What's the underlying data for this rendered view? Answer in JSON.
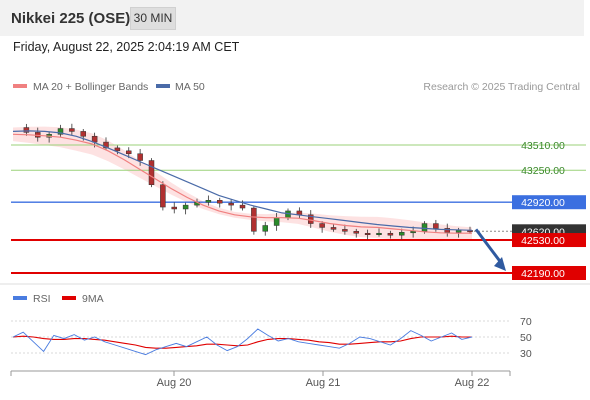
{
  "header": {
    "title": "Nikkei 225 (OSE)",
    "interval": "30 MIN",
    "datetime": "Friday, August 22, 2025 2:04:19 AM CET"
  },
  "legend": {
    "ma20_label": "MA 20 + Bollinger Bands",
    "ma50_label": "MA 50",
    "copyright": "Research © 2025 Trading Central",
    "rsi_label": "RSI",
    "rsi_ma_label": "9MA"
  },
  "colors": {
    "ma20": "#f08080",
    "ma50": "#4a6ba8",
    "bollinger_fill": "#fcd6d6",
    "green_level": "#9bd27a",
    "blue_level": "#3b6fe0",
    "red_level": "#e00000",
    "last_price_tag": "#333333",
    "rsi": "#4a7ce0",
    "rsi_ma": "#e00000",
    "arrow": "#2f5aa0",
    "candle_up": "#2a8a2a",
    "candle_down": "#b03030"
  },
  "chart_data": [
    {
      "type": "candlestick",
      "title": "Nikkei 225 (OSE)",
      "x_tick_labels": [
        "Aug 20",
        "Aug 21",
        "Aug 22"
      ],
      "ylim": [
        42100,
        43750
      ],
      "levels": [
        {
          "label": "43510.00",
          "value": 43510,
          "kind": "resistance"
        },
        {
          "label": "43250.00",
          "value": 43250,
          "kind": "resistance"
        },
        {
          "label": "42920.00",
          "value": 42920,
          "kind": "pivot"
        },
        {
          "label": "42620.00",
          "value": 42620,
          "kind": "last_price"
        },
        {
          "label": "42530.00",
          "value": 42530,
          "kind": "support"
        },
        {
          "label": "42190.00",
          "value": 42190,
          "kind": "target"
        }
      ],
      "series": [
        {
          "name": "MA 20",
          "values": [
            43620,
            43615,
            43605,
            43590,
            43560,
            43520,
            43450,
            43360,
            43260,
            43160,
            43060,
            42970,
            42890,
            42830,
            42790,
            42770,
            42760,
            42760,
            42755,
            42730,
            42700,
            42680,
            42665,
            42660,
            42645,
            42630,
            42615,
            42605,
            42600,
            42600
          ]
        },
        {
          "name": "MA 50",
          "values": [
            43650,
            43655,
            43650,
            43635,
            43600,
            43545,
            43480,
            43410,
            43340,
            43270,
            43200,
            43130,
            43060,
            42990,
            42940,
            42890,
            42850,
            42810,
            42790,
            42770,
            42750,
            42730,
            42710,
            42690,
            42675,
            42660,
            42650,
            42640,
            42635,
            42630
          ]
        }
      ],
      "closes": [
        43690,
        43640,
        43590,
        43620,
        43680,
        43650,
        43600,
        43540,
        43480,
        43450,
        43420,
        43350,
        43100,
        42870,
        42850,
        42890,
        42920,
        42940,
        42910,
        42890,
        42860,
        42620,
        42680,
        42760,
        42830,
        42790,
        42700,
        42660,
        42640,
        42620,
        42600,
        42590,
        42600,
        42580,
        42610,
        42620,
        42700,
        42650,
        42610,
        42630,
        42620
      ]
    },
    {
      "type": "line",
      "title": "RSI",
      "y_tick_labels": [
        "70",
        "50",
        "30"
      ],
      "ylim": [
        20,
        80
      ],
      "series": [
        {
          "name": "RSI",
          "values": [
            50,
            56,
            44,
            32,
            52,
            48,
            53,
            46,
            50,
            44,
            40,
            36,
            32,
            28,
            34,
            38,
            42,
            38,
            44,
            50,
            40,
            33,
            38,
            48,
            60,
            52,
            45,
            48,
            44,
            42,
            40,
            38,
            36,
            42,
            50,
            48,
            44,
            40,
            48,
            58,
            52,
            45,
            50,
            55,
            47,
            50
          ]
        },
        {
          "name": "9MA",
          "values": [
            50,
            51,
            50,
            48,
            47,
            47,
            48,
            48,
            47,
            46,
            44,
            42,
            40,
            37,
            36,
            36,
            37,
            38,
            39,
            41,
            41,
            40,
            39,
            40,
            44,
            47,
            48,
            48,
            47,
            46,
            44,
            43,
            41,
            41,
            42,
            43,
            44,
            44,
            45,
            48,
            50,
            50,
            50,
            51,
            50,
            50
          ]
        }
      ]
    }
  ]
}
